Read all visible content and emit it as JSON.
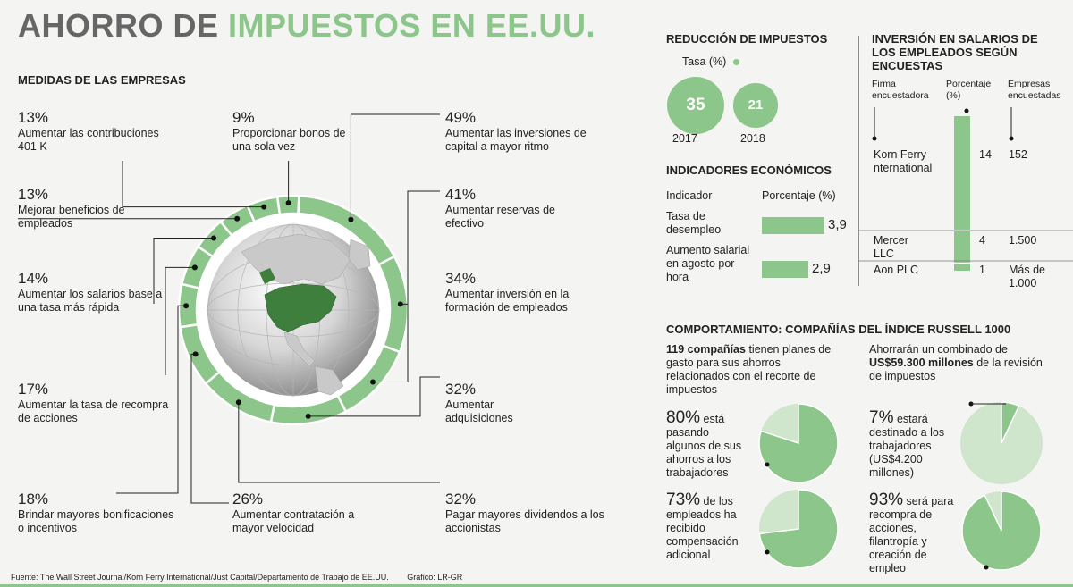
{
  "title_part1": "AHORRO DE",
  "title_part2": "IMPUESTOS EN EE.UU.",
  "measures": {
    "heading": "MEDIDAS DE LAS EMPRESAS",
    "items": [
      {
        "pct": "13%",
        "label": "Aumentar las contribuciones 401 K"
      },
      {
        "pct": "9%",
        "label": "Proporcionar bonos de una sola vez"
      },
      {
        "pct": "49%",
        "label": "Aumentar las inversiones de capital a mayor ritmo"
      },
      {
        "pct": "13%",
        "label": "Mejorar beneficios de empleados"
      },
      {
        "pct": "41%",
        "label": "Aumentar reservas de efectivo"
      },
      {
        "pct": "14%",
        "label": "Aumentar los salarios base a una tasa más rápida"
      },
      {
        "pct": "34%",
        "label": "Aumentar inversión en la formación de empleados"
      },
      {
        "pct": "17%",
        "label": "Aumentar la tasa de recompra de acciones"
      },
      {
        "pct": "32%",
        "label": "Aumentar adquisiciones"
      },
      {
        "pct": "18%",
        "label": "Brindar mayores bonificaciones o incentivos"
      },
      {
        "pct": "26%",
        "label": "Aumentar contratación a mayor velocidad"
      },
      {
        "pct": "32%",
        "label": "Pagar mayores dividendos a los accionistas"
      }
    ]
  },
  "tax": {
    "heading": "REDUCCIÓN DE IMPUESTOS",
    "legend": "Tasa (%)",
    "items": [
      {
        "year": "2017",
        "value": "35"
      },
      {
        "year": "2018",
        "value": "21"
      }
    ]
  },
  "indicators": {
    "heading": "INDICADORES ECONÓMICOS",
    "col1": "Indicador",
    "col2": "Porcentaje (%)",
    "rows": [
      {
        "label": "Tasa de desempleo",
        "value": "3,9"
      },
      {
        "label": "Aumento salarial en agosto por hora",
        "value": "2,9"
      }
    ]
  },
  "salaries": {
    "heading": "INVERSIÓN EN SALARIOS DE LOS EMPLEADOS SEGÚN ENCUESTAS",
    "col1": "Firma encuestadora",
    "col2": "Porcentaje (%)",
    "col3": "Empresas encuestadas",
    "rows": [
      {
        "firm": "Korn Ferry nternational",
        "pct": "14",
        "companies": "152"
      },
      {
        "firm": "Mercer LLC",
        "pct": "4",
        "companies": "1.500"
      },
      {
        "firm": "Aon PLC",
        "pct": "1",
        "companies": "Más de 1.000"
      }
    ]
  },
  "russell": {
    "heading": "COMPORTAMIENTO: COMPAÑÍAS DEL ÍNDICE RUSSELL 1000",
    "left_intro_bold": "119 compañías",
    "left_intro_rest": "tienen planes de gasto para sus ahorros relacionados con el recorte de impuestos",
    "right_intro_pre": "Ahorrarán un combinado de",
    "right_intro_bold": "US$59.300 millones",
    "right_intro_post": "de la revisión de impuestos",
    "pies": [
      {
        "pct": "80%",
        "text": "está pasando algunos de sus ahorros a los trabajadores"
      },
      {
        "pct": "73%",
        "text": "de los empleados ha recibido compensación adicional"
      },
      {
        "pct": "7%",
        "text": "estará destinado a los trabajadores (US$4.200 millones)"
      },
      {
        "pct": "93%",
        "text": "será para recompra de acciones, filantropía y creación de empleo"
      }
    ]
  },
  "footer": "Fuente: The Wall Street Journal/Korn Ferry International/Just Capital/Departamento de Trabajo de EE.UU.",
  "credit": "Gráfico: LR-GR",
  "colors": {
    "accent": "#8cc68a",
    "accent_light": "#cfe5cc",
    "ring_gap": "#ffffff",
    "globe_land": "#3f7f3d"
  },
  "chart_data": [
    {
      "type": "bar",
      "title": "MEDIDAS DE LAS EMPRESAS",
      "categories": [
        "Aumentar las contribuciones 401 K",
        "Proporcionar bonos de una sola vez",
        "Aumentar las inversiones de capital a mayor ritmo",
        "Mejorar beneficios de empleados",
        "Aumentar reservas de efectivo",
        "Aumentar los salarios base a una tasa más rápida",
        "Aumentar inversión en la formación de empleados",
        "Aumentar la tasa de recompra de acciones",
        "Aumentar adquisiciones",
        "Brindar mayores bonificaciones o incentivos",
        "Aumentar contratación a mayor velocidad",
        "Pagar mayores dividendos a los accionistas"
      ],
      "values": [
        13,
        9,
        49,
        13,
        41,
        14,
        34,
        17,
        32,
        18,
        26,
        32
      ]
    },
    {
      "type": "bar",
      "title": "REDUCCIÓN DE IMPUESTOS",
      "categories": [
        "2017",
        "2018"
      ],
      "values": [
        35,
        21
      ]
    },
    {
      "type": "bar",
      "title": "INDICADORES ECONÓMICOS",
      "categories": [
        "Tasa de desempleo",
        "Aumento salarial en agosto por hora"
      ],
      "values": [
        3.9,
        2.9
      ],
      "xmax": 4.5
    },
    {
      "type": "bar",
      "title": "INVERSIÓN EN SALARIOS DE LOS EMPLEADOS SEGÚN ENCUESTAS",
      "categories": [
        "Korn Ferry nternational",
        "Mercer LLC",
        "Aon PLC"
      ],
      "values": [
        14,
        4,
        1
      ]
    },
    {
      "type": "pie",
      "title": "COMPORTAMIENTO: COMPAÑÍAS DEL ÍNDICE RUSSELL 1000",
      "slices": [
        80,
        73,
        7,
        93
      ]
    }
  ]
}
